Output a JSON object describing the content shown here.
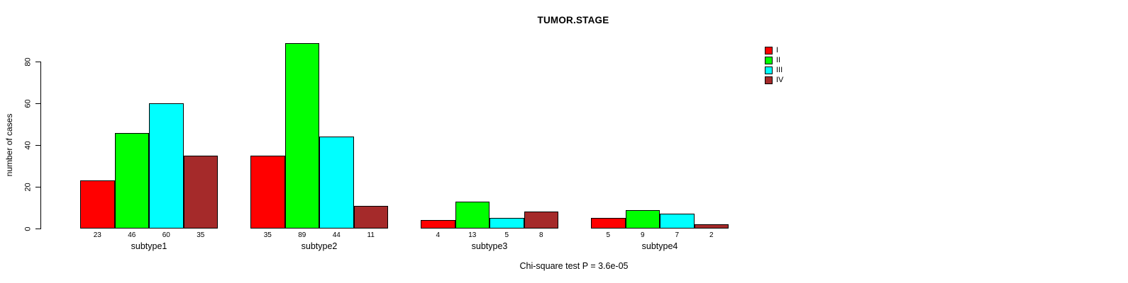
{
  "chart_data": {
    "type": "bar",
    "title": "TUMOR.STAGE",
    "ylabel": "number of cases",
    "xlabel": "",
    "categories": [
      "subtype1",
      "subtype2",
      "subtype3",
      "subtype4"
    ],
    "series": [
      {
        "name": "I",
        "color": "#FF0000",
        "values": [
          23,
          35,
          4,
          5
        ]
      },
      {
        "name": "II",
        "color": "#00FF00",
        "values": [
          46,
          89,
          13,
          9
        ]
      },
      {
        "name": "III",
        "color": "#00FFFF",
        "values": [
          60,
          44,
          5,
          7
        ]
      },
      {
        "name": "IV",
        "color": "#A52A2A",
        "values": [
          35,
          11,
          8,
          2
        ]
      }
    ],
    "bar_value_labels": [
      [
        "23",
        "46",
        "60",
        "35"
      ],
      [
        "35",
        "89",
        "44",
        "11"
      ],
      [
        "4",
        "13",
        "5",
        "8"
      ],
      [
        "5",
        "9",
        "7",
        "2"
      ]
    ],
    "yticks": [
      "0",
      "20",
      "40",
      "60",
      "80"
    ],
    "ylim": [
      0,
      89
    ],
    "grid": false,
    "legend_position": "top-right",
    "legend_entries": [
      "I",
      "II",
      "III",
      "IV"
    ],
    "caption": "Chi-square test P = 3.6e-05"
  }
}
